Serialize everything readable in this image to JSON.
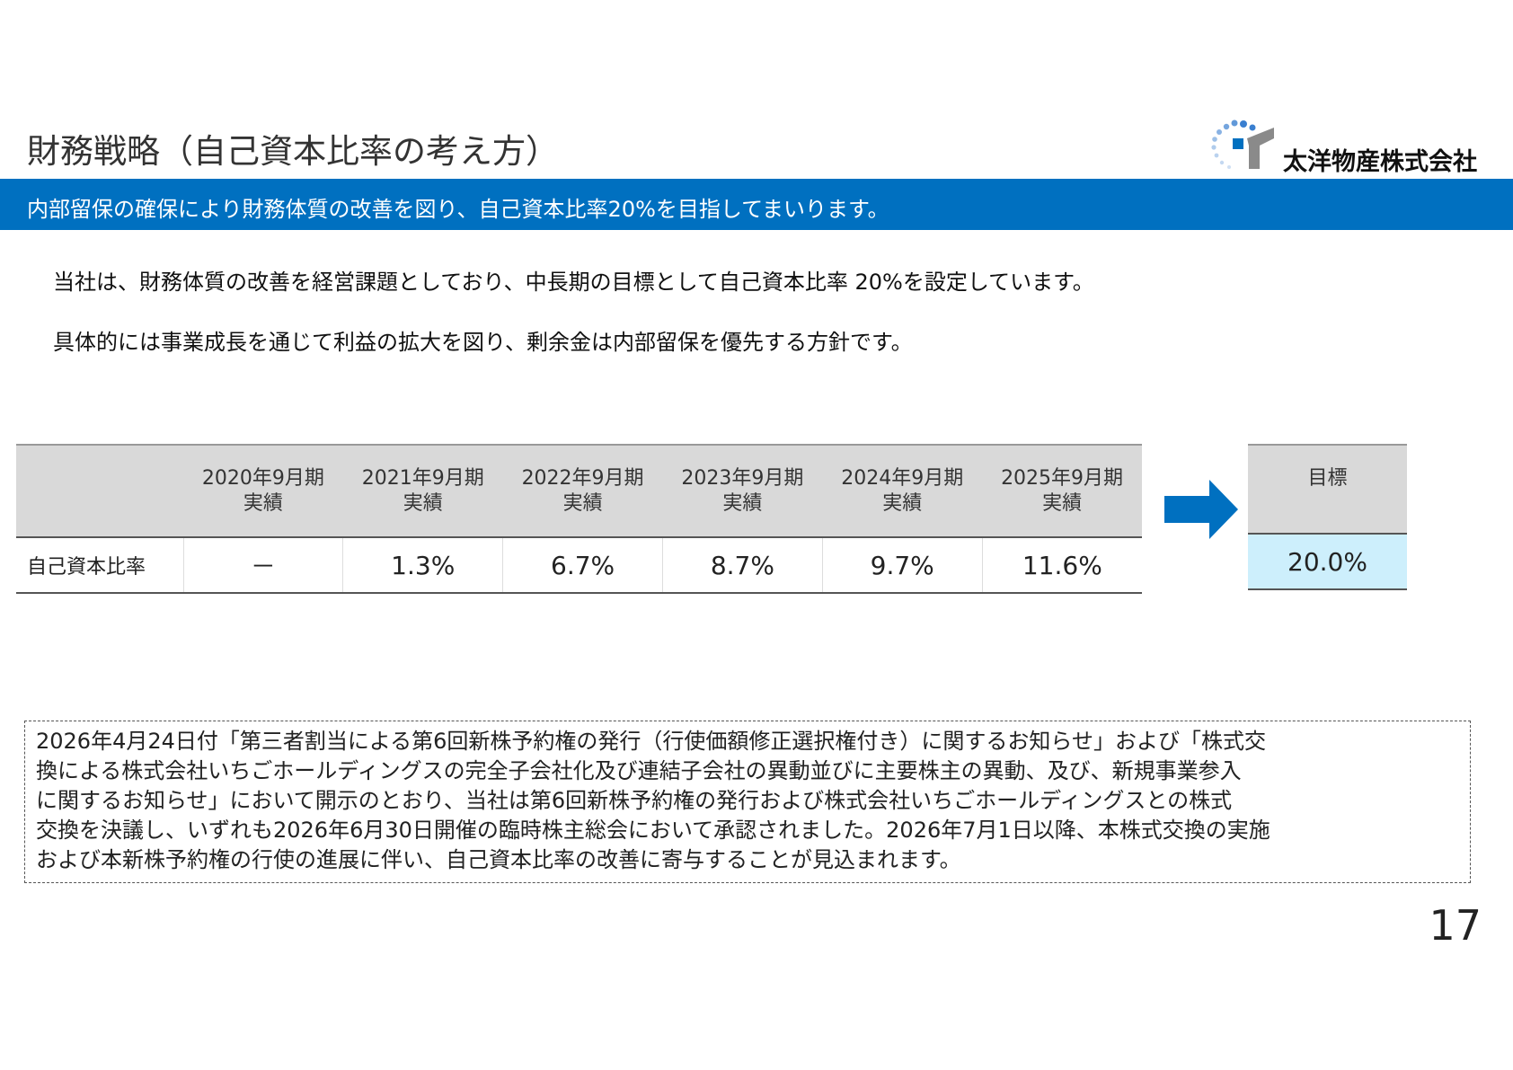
{
  "header": {
    "title": "財務戦略（自己資本比率の考え方）",
    "company": "太洋物産株式会社"
  },
  "banner": "内部留保の確保により財務体質の改善を図り、自己資本比率20%を目指してまいります。",
  "body": [
    "当社は、財務体質の改善を経営課題としており、中長期の目標として自己資本比率 20%を設定しています。",
    "具体的には事業成長を通じて利益の拡大を図り、剰余金は内部留保を優先する方針です。"
  ],
  "table": {
    "columns": [
      [
        "2020年9月期",
        "実績"
      ],
      [
        "2021年9月期",
        "実績"
      ],
      [
        "2022年9月期",
        "実績"
      ],
      [
        "2023年9月期",
        "実績"
      ],
      [
        "2024年9月期",
        "実績"
      ],
      [
        "2025年9月期",
        "実績"
      ]
    ],
    "row_label": "自己資本比率",
    "values": [
      "－",
      "1.3%",
      "6.7%",
      "8.7%",
      "9.7%",
      "11.6%"
    ]
  },
  "target": {
    "header": "目標",
    "value": "20.0%"
  },
  "note": {
    "lines": [
      "2026年4月24日付「第三者割当による第6回新株予約権の発行（行使価額修正選択権付き）に関するお知らせ」および「株式交",
      "換による株式会社いちごホールディングスの完全子会社化及び連結子会社の異動並びに主要株主の異動、及び、新規事業参入",
      "に関するお知らせ」において開示のとおり、当社は第6回新株予約権の発行および株式会社いちごホールディングスとの株式",
      "交換を決議し、いずれも2026年6月30日開催の臨時株主総会において承認されました。2026年7月1日以降、本株式交換の実施",
      "および本新株予約権の行使の進展に伴い、自己資本比率の改善に寄与することが見込まれます。"
    ]
  },
  "page_number": "17"
}
